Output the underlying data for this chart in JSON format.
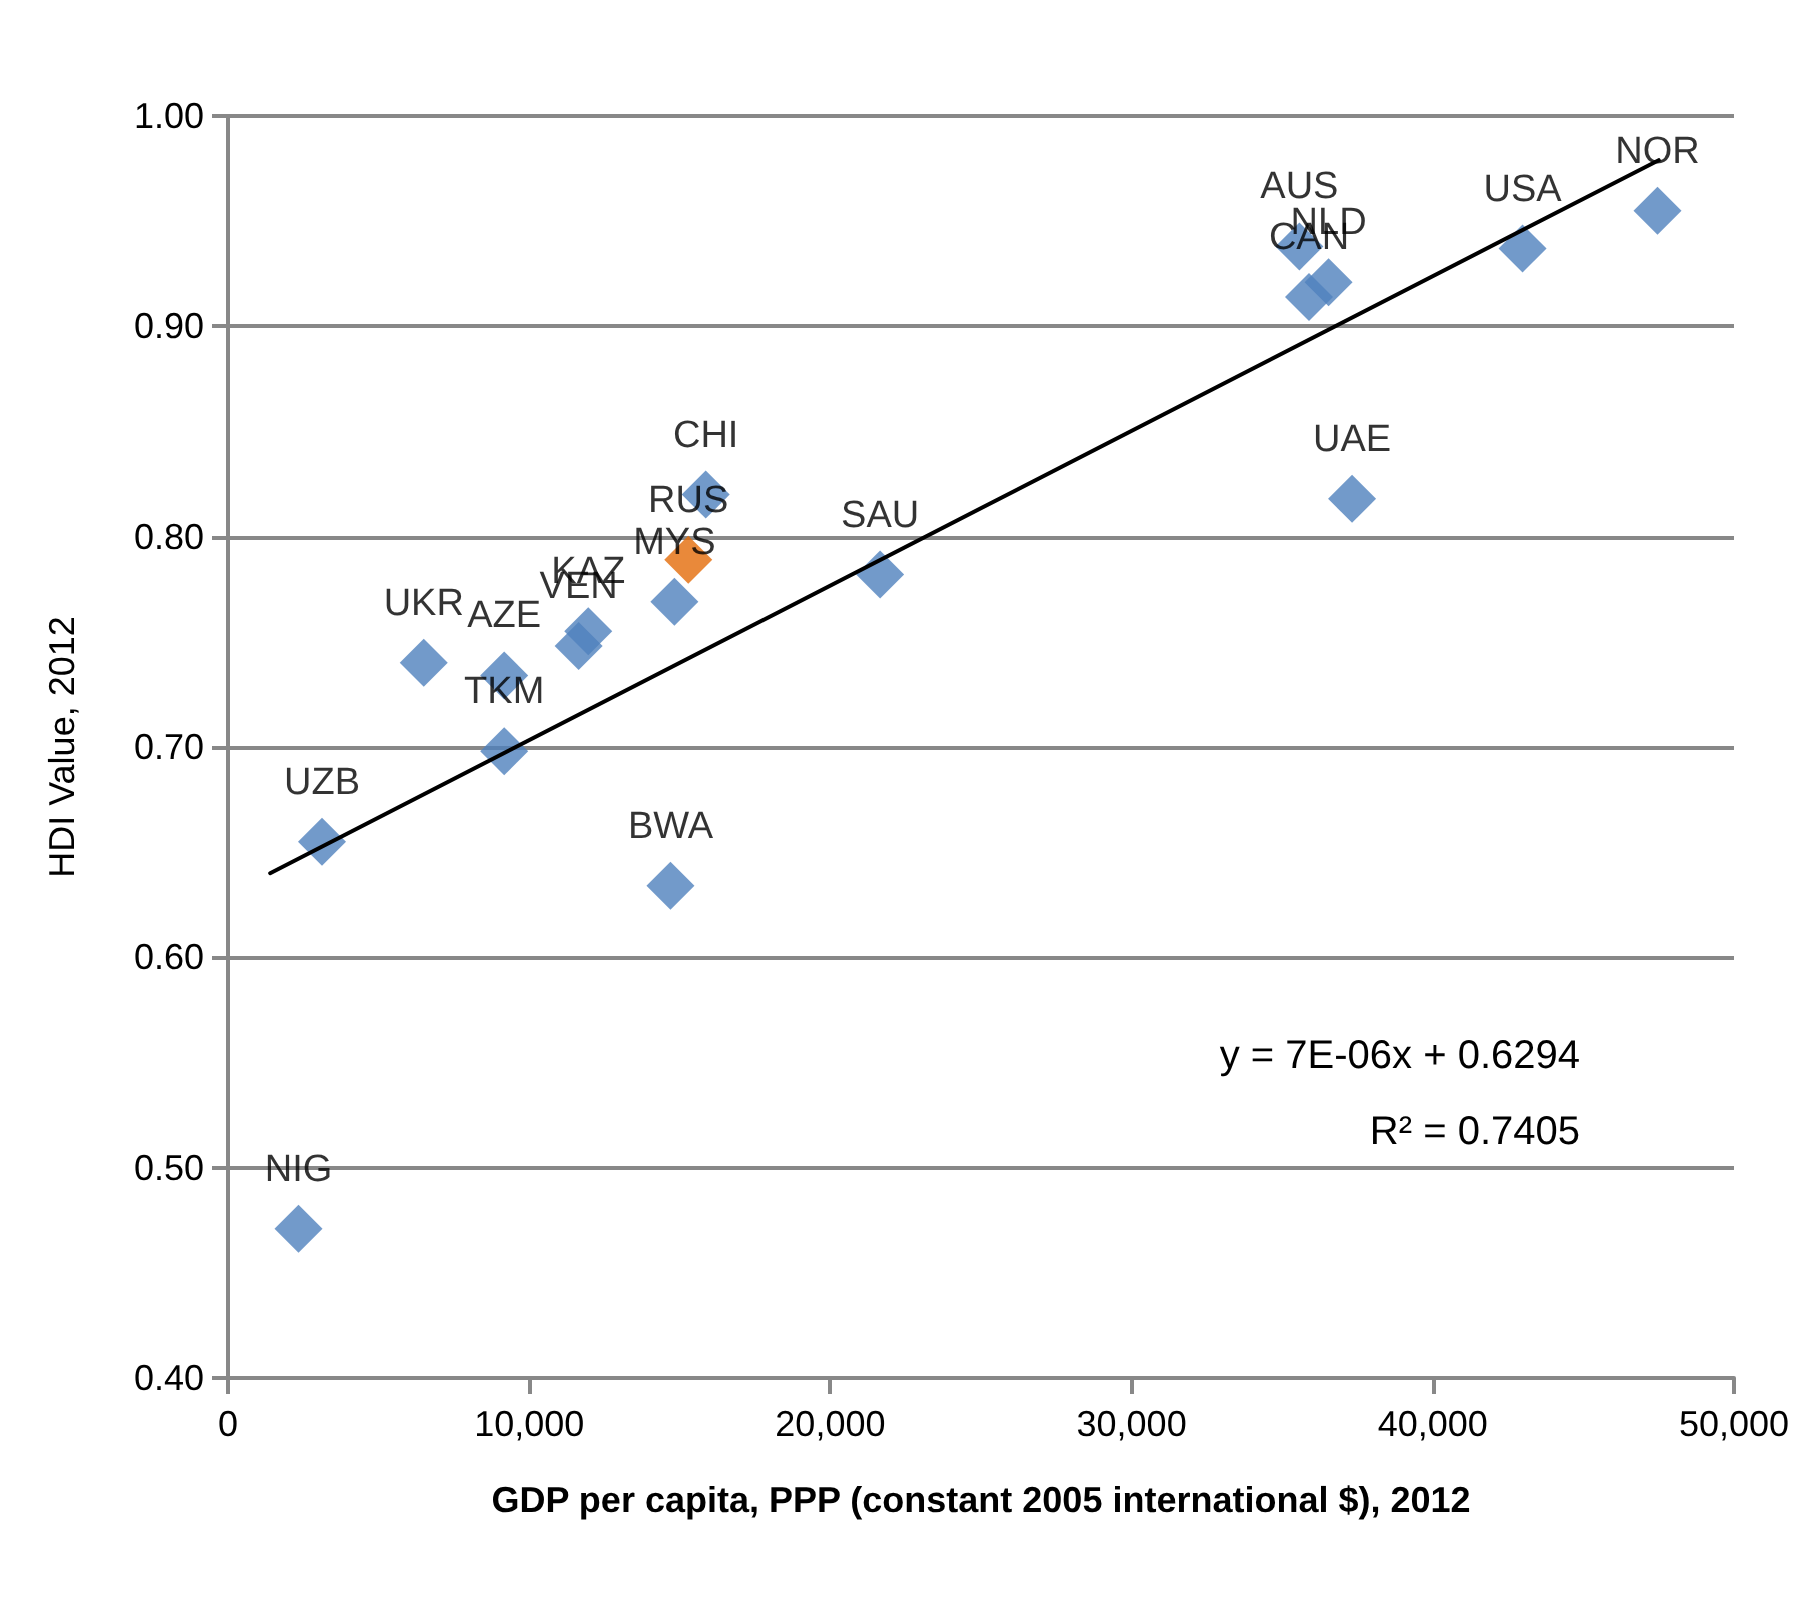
{
  "chart_data": {
    "type": "scatter",
    "xlabel": "GDP per capita, PPP (constant 2005 international $), 2012",
    "ylabel": "HDI Value, 2012",
    "xlim": [
      0,
      50000
    ],
    "ylim": [
      0.4,
      1.0
    ],
    "xticks": [
      0,
      {
        "value": 10000,
        "label": "10,000"
      },
      {
        "value": 20000,
        "label": "20,000"
      },
      {
        "value": 30000,
        "label": "30,000"
      },
      {
        "value": 40000,
        "label": "40,000"
      },
      {
        "value": 50000,
        "label": "50,000"
      }
    ],
    "yticks": [
      {
        "value": 0.4,
        "label": "0.40"
      },
      {
        "value": 0.5,
        "label": "0.50"
      },
      {
        "value": 0.6,
        "label": "0.60"
      },
      {
        "value": 0.7,
        "label": "0.70"
      },
      {
        "value": 0.8,
        "label": "0.80"
      },
      {
        "value": 0.9,
        "label": "0.90"
      },
      {
        "value": 1.0,
        "label": "1.00"
      }
    ],
    "grid": "y",
    "marker": "diamond",
    "series": [
      {
        "x": [
          2340,
          3120,
          6500,
          9170,
          9170,
          11640,
          11960,
          14820,
          15280,
          15860,
          14690,
          21650,
          35570,
          35890,
          36540,
          37320,
          42980,
          47460
        ],
        "values": [
          0.471,
          0.655,
          0.74,
          0.734,
          0.698,
          0.748,
          0.755,
          0.769,
          0.789,
          0.82,
          0.634,
          0.782,
          0.938,
          0.914,
          0.921,
          0.818,
          0.937,
          0.955
        ],
        "colors": [
          "#4f81bd",
          "#4f81bd",
          "#4f81bd",
          "#4f81bd",
          "#4f81bd",
          "#4f81bd",
          "#4f81bd",
          "#4f81bd",
          "#e36c09",
          "#4f81bd",
          "#4f81bd",
          "#4f81bd",
          "#4f81bd",
          "#4f81bd",
          "#4f81bd",
          "#4f81bd",
          "#4f81bd",
          "#4f81bd"
        ]
      },
      {
        "type": "line",
        "marker": "none",
        "color": "#000000",
        "x": [
          1400,
          47500
        ],
        "values": [
          0.64,
          0.979
        ]
      }
    ],
    "annotations": [
      {
        "text": "NIG",
        "x": 2340,
        "y": 0.471
      },
      {
        "text": "UZB",
        "x": 3120,
        "y": 0.655
      },
      {
        "text": "UKR",
        "x": 6500,
        "y": 0.74
      },
      {
        "text": "AZE",
        "x": 9170,
        "y": 0.734
      },
      {
        "text": "TKM",
        "x": 9170,
        "y": 0.698
      },
      {
        "text": "VEN",
        "x": 11640,
        "y": 0.748
      },
      {
        "text": "KAZ",
        "x": 11960,
        "y": 0.755
      },
      {
        "text": "MYS",
        "x": 14820,
        "y": 0.769
      },
      {
        "text": "RUS",
        "x": 15280,
        "y": 0.789
      },
      {
        "text": "CHI",
        "x": 15860,
        "y": 0.82
      },
      {
        "text": "BWA",
        "x": 14690,
        "y": 0.634
      },
      {
        "text": "SAU",
        "x": 21650,
        "y": 0.782
      },
      {
        "text": "AUS",
        "x": 35570,
        "y": 0.938
      },
      {
        "text": "CAN",
        "x": 35890,
        "y": 0.914
      },
      {
        "text": "NLD",
        "x": 36540,
        "y": 0.921
      },
      {
        "text": "UAE",
        "x": 37320,
        "y": 0.818
      },
      {
        "text": "USA",
        "x": 42980,
        "y": 0.937
      },
      {
        "text": "NOR",
        "x": 47460,
        "y": 0.955
      },
      "y = 7E-06x + 0.6294",
      "R² = 0.7405"
    ]
  }
}
